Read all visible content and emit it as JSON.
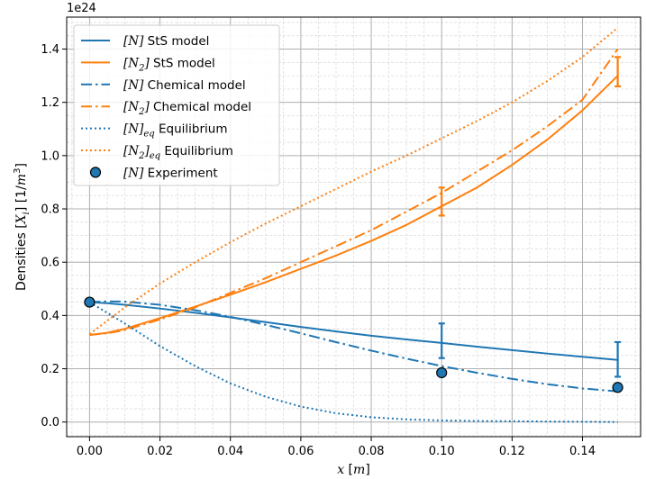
{
  "chart_data": {
    "type": "line",
    "offset_text": "1e24",
    "xlabel": "x [m]",
    "ylabel": "Densities [X_i] [1/m^3]",
    "xlim": [
      -0.0065,
      0.1565
    ],
    "ylim": [
      -0.055,
      1.52
    ],
    "x_ticks": [
      "0.00",
      "0.02",
      "0.04",
      "0.06",
      "0.08",
      "0.10",
      "0.12",
      "0.14"
    ],
    "y_ticks": [
      "0.0",
      "0.2",
      "0.4",
      "0.6",
      "0.8",
      "1.0",
      "1.2",
      "1.4"
    ],
    "grid": true,
    "minor_grid": true,
    "legend_position": "upper-left",
    "series": [
      {
        "name": "[N] StS model",
        "label_parts": [
          {
            "t": "[",
            "m": true
          },
          {
            "t": "N",
            "m": true
          },
          {
            "t": "]",
            "m": true
          },
          {
            "t": " StS model"
          }
        ],
        "color": "#1f77b4",
        "style": "solid",
        "x": [
          0,
          0.005,
          0.01,
          0.02,
          0.03,
          0.04,
          0.05,
          0.06,
          0.07,
          0.08,
          0.09,
          0.1,
          0.11,
          0.12,
          0.13,
          0.14,
          0.15
        ],
        "y": [
          0.45,
          0.446,
          0.44,
          0.426,
          0.41,
          0.393,
          0.375,
          0.357,
          0.34,
          0.324,
          0.31,
          0.297,
          0.283,
          0.27,
          0.257,
          0.245,
          0.233
        ]
      },
      {
        "name": "[N2] StS model",
        "label_parts": [
          {
            "t": "[",
            "m": true
          },
          {
            "t": "N",
            "m": true
          },
          {
            "t": "2",
            "m": true,
            "sub": true
          },
          {
            "t": "]",
            "m": true
          },
          {
            "t": " StS model"
          }
        ],
        "color": "#ff7f0e",
        "style": "solid",
        "x": [
          0,
          0.005,
          0.01,
          0.02,
          0.03,
          0.04,
          0.05,
          0.06,
          0.07,
          0.08,
          0.09,
          0.1,
          0.11,
          0.12,
          0.13,
          0.14,
          0.15
        ],
        "y": [
          0.327,
          0.335,
          0.35,
          0.39,
          0.433,
          0.478,
          0.525,
          0.575,
          0.625,
          0.68,
          0.74,
          0.81,
          0.88,
          0.965,
          1.06,
          1.17,
          1.3
        ]
      },
      {
        "name": "[N] Chemical model",
        "label_parts": [
          {
            "t": "[",
            "m": true
          },
          {
            "t": "N",
            "m": true
          },
          {
            "t": "]",
            "m": true
          },
          {
            "t": " Chemical model"
          }
        ],
        "color": "#1f77b4",
        "style": "dashdot",
        "x": [
          0,
          0.005,
          0.01,
          0.02,
          0.03,
          0.04,
          0.05,
          0.06,
          0.07,
          0.08,
          0.09,
          0.1,
          0.11,
          0.12,
          0.13,
          0.14,
          0.15
        ],
        "y": [
          0.45,
          0.453,
          0.452,
          0.44,
          0.42,
          0.395,
          0.365,
          0.333,
          0.3,
          0.268,
          0.238,
          0.21,
          0.185,
          0.162,
          0.142,
          0.126,
          0.115
        ]
      },
      {
        "name": "[N2] Chemical model",
        "label_parts": [
          {
            "t": "[",
            "m": true
          },
          {
            "t": "N",
            "m": true
          },
          {
            "t": "2",
            "m": true,
            "sub": true
          },
          {
            "t": "]",
            "m": true
          },
          {
            "t": " Chemical model"
          }
        ],
        "color": "#ff7f0e",
        "style": "dashdot",
        "x": [
          0,
          0.005,
          0.01,
          0.02,
          0.03,
          0.04,
          0.05,
          0.06,
          0.07,
          0.08,
          0.09,
          0.1,
          0.11,
          0.12,
          0.13,
          0.14,
          0.15
        ],
        "y": [
          0.327,
          0.333,
          0.345,
          0.385,
          0.43,
          0.485,
          0.54,
          0.6,
          0.66,
          0.72,
          0.79,
          0.86,
          0.94,
          1.02,
          1.11,
          1.21,
          1.4
        ]
      },
      {
        "name": "[N]eq Equilibrium",
        "label_parts": [
          {
            "t": "[",
            "m": true
          },
          {
            "t": "N",
            "m": true
          },
          {
            "t": "]",
            "m": true
          },
          {
            "t": "eq",
            "m": true,
            "sub": true
          },
          {
            "t": " Equilibrium"
          }
        ],
        "color": "#1f77b4",
        "style": "dotted",
        "x": [
          0,
          0.01,
          0.02,
          0.03,
          0.04,
          0.05,
          0.06,
          0.07,
          0.08,
          0.09,
          0.1,
          0.11,
          0.12,
          0.13,
          0.14,
          0.15
        ],
        "y": [
          0.45,
          0.37,
          0.285,
          0.21,
          0.145,
          0.095,
          0.058,
          0.033,
          0.018,
          0.01,
          0.006,
          0.004,
          0.003,
          0.002,
          0.001,
          0.0
        ]
      },
      {
        "name": "[N2]eq Equilibrium",
        "label_parts": [
          {
            "t": "[",
            "m": true
          },
          {
            "t": "N",
            "m": true
          },
          {
            "t": "2",
            "m": true,
            "sub": true
          },
          {
            "t": "]",
            "m": true
          },
          {
            "t": "eq",
            "m": true,
            "sub": true
          },
          {
            "t": " Equilibrium"
          }
        ],
        "color": "#ff7f0e",
        "style": "dotted",
        "x": [
          0,
          0.01,
          0.02,
          0.03,
          0.04,
          0.05,
          0.06,
          0.07,
          0.08,
          0.09,
          0.1,
          0.11,
          0.12,
          0.13,
          0.14,
          0.15
        ],
        "y": [
          0.33,
          0.43,
          0.52,
          0.6,
          0.675,
          0.745,
          0.81,
          0.875,
          0.94,
          1.0,
          1.065,
          1.13,
          1.2,
          1.28,
          1.37,
          1.48
        ]
      }
    ],
    "experiment": {
      "name": "[N] Experiment",
      "label_parts": [
        {
          "t": "[",
          "m": true
        },
        {
          "t": "N",
          "m": true
        },
        {
          "t": "]",
          "m": true
        },
        {
          "t": " Experiment"
        }
      ],
      "color": "#1f77b4",
      "x": [
        0.0,
        0.1,
        0.15
      ],
      "y": [
        0.45,
        0.185,
        0.13
      ]
    },
    "error_bars": [
      {
        "x": 0.1,
        "y_low": 0.24,
        "y_high": 0.37,
        "color": "#1f77b4"
      },
      {
        "x": 0.15,
        "y_low": 0.17,
        "y_high": 0.3,
        "color": "#1f77b4"
      },
      {
        "x": 0.1,
        "y_low": 0.775,
        "y_high": 0.88,
        "color": "#ff7f0e"
      },
      {
        "x": 0.15,
        "y_low": 1.26,
        "y_high": 1.37,
        "color": "#ff7f0e"
      }
    ]
  }
}
